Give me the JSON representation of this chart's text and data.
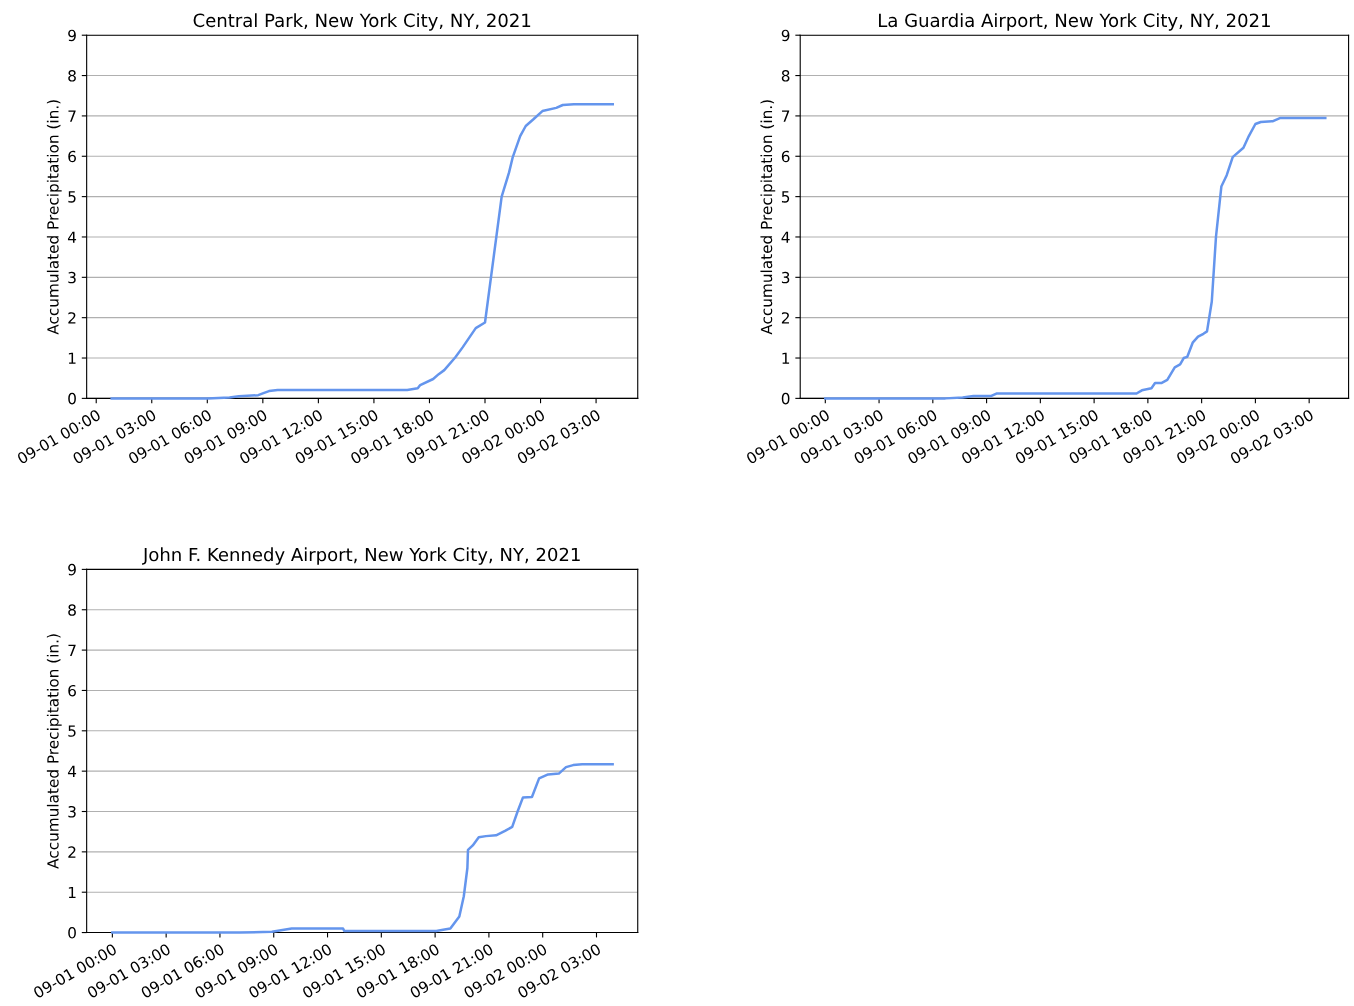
{
  "chart_data": [
    {
      "type": "line",
      "title": "Central Park, New York City, NY, 2021",
      "ylabel": "Accumulated Precipitation (in.)",
      "grid": "y",
      "xlim": [
        "2021-08-31T23:29",
        "2021-09-02T05:15"
      ],
      "ylim": [
        0,
        9
      ],
      "yticks": [
        0,
        1,
        2,
        3,
        4,
        5,
        6,
        7,
        8,
        9
      ],
      "xticks": [
        {
          "value": "2021-09-01T00:00",
          "label": "09-01 00:00"
        },
        {
          "value": "2021-09-01T03:00",
          "label": "09-01 03:00"
        },
        {
          "value": "2021-09-01T06:00",
          "label": "09-01 06:00"
        },
        {
          "value": "2021-09-01T09:00",
          "label": "09-01 09:00"
        },
        {
          "value": "2021-09-01T12:00",
          "label": "09-01 12:00"
        },
        {
          "value": "2021-09-01T15:00",
          "label": "09-01 15:00"
        },
        {
          "value": "2021-09-01T18:00",
          "label": "09-01 18:00"
        },
        {
          "value": "2021-09-01T21:00",
          "label": "09-01 21:00"
        },
        {
          "value": "2021-09-02T00:00",
          "label": "09-02 00:00"
        },
        {
          "value": "2021-09-02T03:00",
          "label": "09-02 03:00"
        }
      ],
      "x": [
        "2021-09-01T00:50",
        "2021-09-01T06:00",
        "2021-09-01T07:12",
        "2021-09-01T07:42",
        "2021-09-01T08:45",
        "2021-09-01T09:02",
        "2021-09-01T09:20",
        "2021-09-01T09:48",
        "2021-09-01T16:48",
        "2021-09-01T17:22",
        "2021-09-01T17:30",
        "2021-09-01T18:12",
        "2021-09-01T18:30",
        "2021-09-01T18:48",
        "2021-09-01T19:24",
        "2021-09-01T19:48",
        "2021-09-01T20:30",
        "2021-09-01T21:00",
        "2021-09-01T21:54",
        "2021-09-01T22:18",
        "2021-09-01T22:30",
        "2021-09-01T22:54",
        "2021-09-01T23:12",
        "2021-09-01T23:36",
        "2021-09-02T00:06",
        "2021-09-02T00:51",
        "2021-09-02T01:12",
        "2021-09-02T01:48",
        "2021-09-02T03:54"
      ],
      "series": [
        {
          "color": "#6495ed",
          "values": [
            0,
            0,
            0.02,
            0.05,
            0.08,
            0.13,
            0.18,
            0.21,
            0.21,
            0.25,
            0.33,
            0.48,
            0.6,
            0.7,
            1.02,
            1.27,
            1.74,
            1.88,
            5.0,
            5.6,
            5.98,
            6.5,
            6.75,
            6.91,
            7.12,
            7.2,
            7.27,
            7.29,
            7.29
          ]
        }
      ]
    },
    {
      "type": "line",
      "title": "La Guardia Airport, New York City, NY, 2021",
      "ylabel": "Accumulated Precipitation (in.)",
      "grid": "y",
      "xlim": [
        "2021-08-31T22:36",
        "2021-09-02T05:12"
      ],
      "ylim": [
        0,
        9
      ],
      "yticks": [
        0,
        1,
        2,
        3,
        4,
        5,
        6,
        7,
        8,
        9
      ],
      "xticks": [
        {
          "value": "2021-09-01T00:00",
          "label": "09-01 00:00"
        },
        {
          "value": "2021-09-01T03:00",
          "label": "09-01 03:00"
        },
        {
          "value": "2021-09-01T06:00",
          "label": "09-01 06:00"
        },
        {
          "value": "2021-09-01T09:00",
          "label": "09-01 09:00"
        },
        {
          "value": "2021-09-01T12:00",
          "label": "09-01 12:00"
        },
        {
          "value": "2021-09-01T15:00",
          "label": "09-01 15:00"
        },
        {
          "value": "2021-09-01T18:00",
          "label": "09-01 18:00"
        },
        {
          "value": "2021-09-01T21:00",
          "label": "09-01 21:00"
        },
        {
          "value": "2021-09-02T00:00",
          "label": "09-02 00:00"
        },
        {
          "value": "2021-09-02T03:00",
          "label": "09-02 03:00"
        }
      ],
      "x": [
        "2021-09-01T00:00",
        "2021-09-01T06:42",
        "2021-09-01T07:40",
        "2021-09-01T08:16",
        "2021-09-01T09:16",
        "2021-09-01T09:33",
        "2021-09-01T17:22",
        "2021-09-01T17:40",
        "2021-09-01T18:12",
        "2021-09-01T18:24",
        "2021-09-01T18:45",
        "2021-09-01T19:05",
        "2021-09-01T19:30",
        "2021-09-01T19:48",
        "2021-09-01T20:00",
        "2021-09-01T20:12",
        "2021-09-01T20:30",
        "2021-09-01T20:48",
        "2021-09-01T21:06",
        "2021-09-01T21:18",
        "2021-09-01T21:34",
        "2021-09-01T21:48",
        "2021-09-01T22:06",
        "2021-09-01T22:24",
        "2021-09-01T22:44",
        "2021-09-01T23:20",
        "2021-09-01T23:38",
        "2021-09-02T00:00",
        "2021-09-02T00:18",
        "2021-09-02T00:59",
        "2021-09-02T01:24",
        "2021-09-02T03:54"
      ],
      "series": [
        {
          "color": "#6495ed",
          "values": [
            0,
            0,
            0.02,
            0.06,
            0.06,
            0.12,
            0.12,
            0.2,
            0.25,
            0.38,
            0.38,
            0.46,
            0.77,
            0.84,
            1.0,
            1.03,
            1.38,
            1.53,
            1.6,
            1.66,
            2.4,
            4.0,
            5.25,
            5.53,
            5.98,
            6.21,
            6.5,
            6.8,
            6.85,
            6.87,
            6.95,
            6.95
          ]
        }
      ]
    },
    {
      "type": "line",
      "title": "John F. Kennedy Airport, New York City, NY, 2021",
      "ylabel": "Accumulated Precipitation (in.)",
      "grid": "y",
      "xlim": [
        "2021-08-31T22:34",
        "2021-09-02T05:18"
      ],
      "ylim": [
        0,
        9
      ],
      "yticks": [
        0,
        1,
        2,
        3,
        4,
        5,
        6,
        7,
        8,
        9
      ],
      "xticks": [
        {
          "value": "2021-09-01T00:00",
          "label": "09-01 00:00"
        },
        {
          "value": "2021-09-01T03:00",
          "label": "09-01 03:00"
        },
        {
          "value": "2021-09-01T06:00",
          "label": "09-01 06:00"
        },
        {
          "value": "2021-09-01T09:00",
          "label": "09-01 09:00"
        },
        {
          "value": "2021-09-01T12:00",
          "label": "09-01 12:00"
        },
        {
          "value": "2021-09-01T15:00",
          "label": "09-01 15:00"
        },
        {
          "value": "2021-09-01T18:00",
          "label": "09-01 18:00"
        },
        {
          "value": "2021-09-01T21:00",
          "label": "09-01 21:00"
        },
        {
          "value": "2021-09-02T00:00",
          "label": "09-02 00:00"
        },
        {
          "value": "2021-09-02T03:00",
          "label": "09-02 03:00"
        }
      ],
      "x": [
        "2021-09-01T00:00",
        "2021-09-01T07:06",
        "2021-09-01T08:54",
        "2021-09-01T10:00",
        "2021-09-01T12:52",
        "2021-09-01T12:56",
        "2021-09-01T18:04",
        "2021-09-01T18:27",
        "2021-09-01T18:51",
        "2021-09-01T19:21",
        "2021-09-01T19:36",
        "2021-09-01T19:48",
        "2021-09-01T19:50",
        "2021-09-01T20:06",
        "2021-09-01T20:26",
        "2021-09-01T20:50",
        "2021-09-01T21:24",
        "2021-09-01T21:54",
        "2021-09-01T22:18",
        "2021-09-01T22:36",
        "2021-09-01T22:54",
        "2021-09-01T23:24",
        "2021-09-01T23:48",
        "2021-09-02T00:18",
        "2021-09-02T00:54",
        "2021-09-02T01:18",
        "2021-09-02T01:42",
        "2021-09-02T02:12",
        "2021-09-02T03:54"
      ],
      "series": [
        {
          "color": "#6495ed",
          "values": [
            0,
            0,
            0.02,
            0.1,
            0.1,
            0.04,
            0.04,
            0.07,
            0.1,
            0.4,
            0.9,
            1.6,
            2.05,
            2.16,
            2.36,
            2.39,
            2.41,
            2.52,
            2.62,
            3.0,
            3.35,
            3.36,
            3.82,
            3.92,
            3.94,
            4.1,
            4.15,
            4.17,
            4.17
          ]
        }
      ]
    }
  ]
}
